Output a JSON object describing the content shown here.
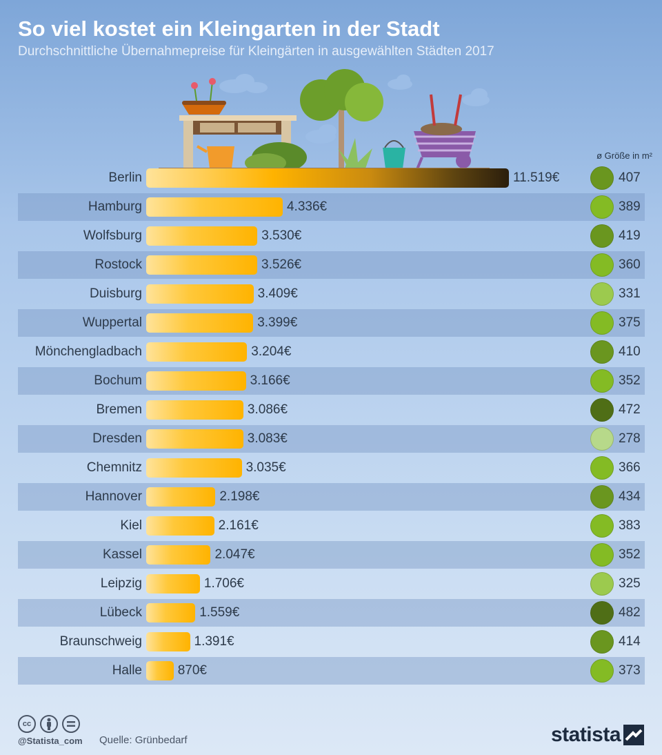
{
  "header": {
    "title": "So viel kostet ein Kleingarten in der Stadt",
    "subtitle": "Durchschnittliche Übernahmepreise für Kleingärten in ausgewählten Städten 2017"
  },
  "size_header": "ø Größe in m²",
  "chart_data": {
    "type": "bar",
    "orientation": "horizontal",
    "categories": [
      "Berlin",
      "Hamburg",
      "Wolfsburg",
      "Rostock",
      "Duisburg",
      "Wuppertal",
      "Mönchengladbach",
      "Bochum",
      "Bremen",
      "Dresden",
      "Chemnitz",
      "Hannover",
      "Kiel",
      "Kassel",
      "Leipzig",
      "Lübeck",
      "Braunschweig",
      "Halle"
    ],
    "values": [
      11519,
      4336,
      3530,
      3526,
      3409,
      3399,
      3204,
      3166,
      3086,
      3083,
      3035,
      2198,
      2161,
      2047,
      1706,
      1559,
      1391,
      870
    ],
    "value_labels": [
      "11.519€",
      "4.336€",
      "3.530€",
      "3.526€",
      "3.409€",
      "3.399€",
      "3.204€",
      "3.166€",
      "3.086€",
      "3.083€",
      "3.035€",
      "2.198€",
      "2.161€",
      "2.047€",
      "1.706€",
      "1.559€",
      "1.391€",
      "870€"
    ],
    "sizes": [
      407,
      389,
      419,
      360,
      331,
      375,
      410,
      352,
      472,
      278,
      366,
      434,
      383,
      352,
      325,
      482,
      414,
      373
    ],
    "size_colors": [
      "#6a961f",
      "#84bb24",
      "#6a961f",
      "#84bb24",
      "#9cca4e",
      "#84bb24",
      "#6a961f",
      "#84bb24",
      "#4f6e16",
      "#b7d98a",
      "#84bb24",
      "#6a961f",
      "#84bb24",
      "#84bb24",
      "#9cca4e",
      "#4f6e16",
      "#6a961f",
      "#84bb24"
    ],
    "bar_color": "#ffb300",
    "xlim": [
      0,
      11519
    ]
  },
  "footer": {
    "handle": "@Statista_com",
    "source": "Quelle: Grünbedarf",
    "brand": "statista",
    "license_icons": [
      "cc-icon",
      "by-icon",
      "nd-icon"
    ]
  }
}
